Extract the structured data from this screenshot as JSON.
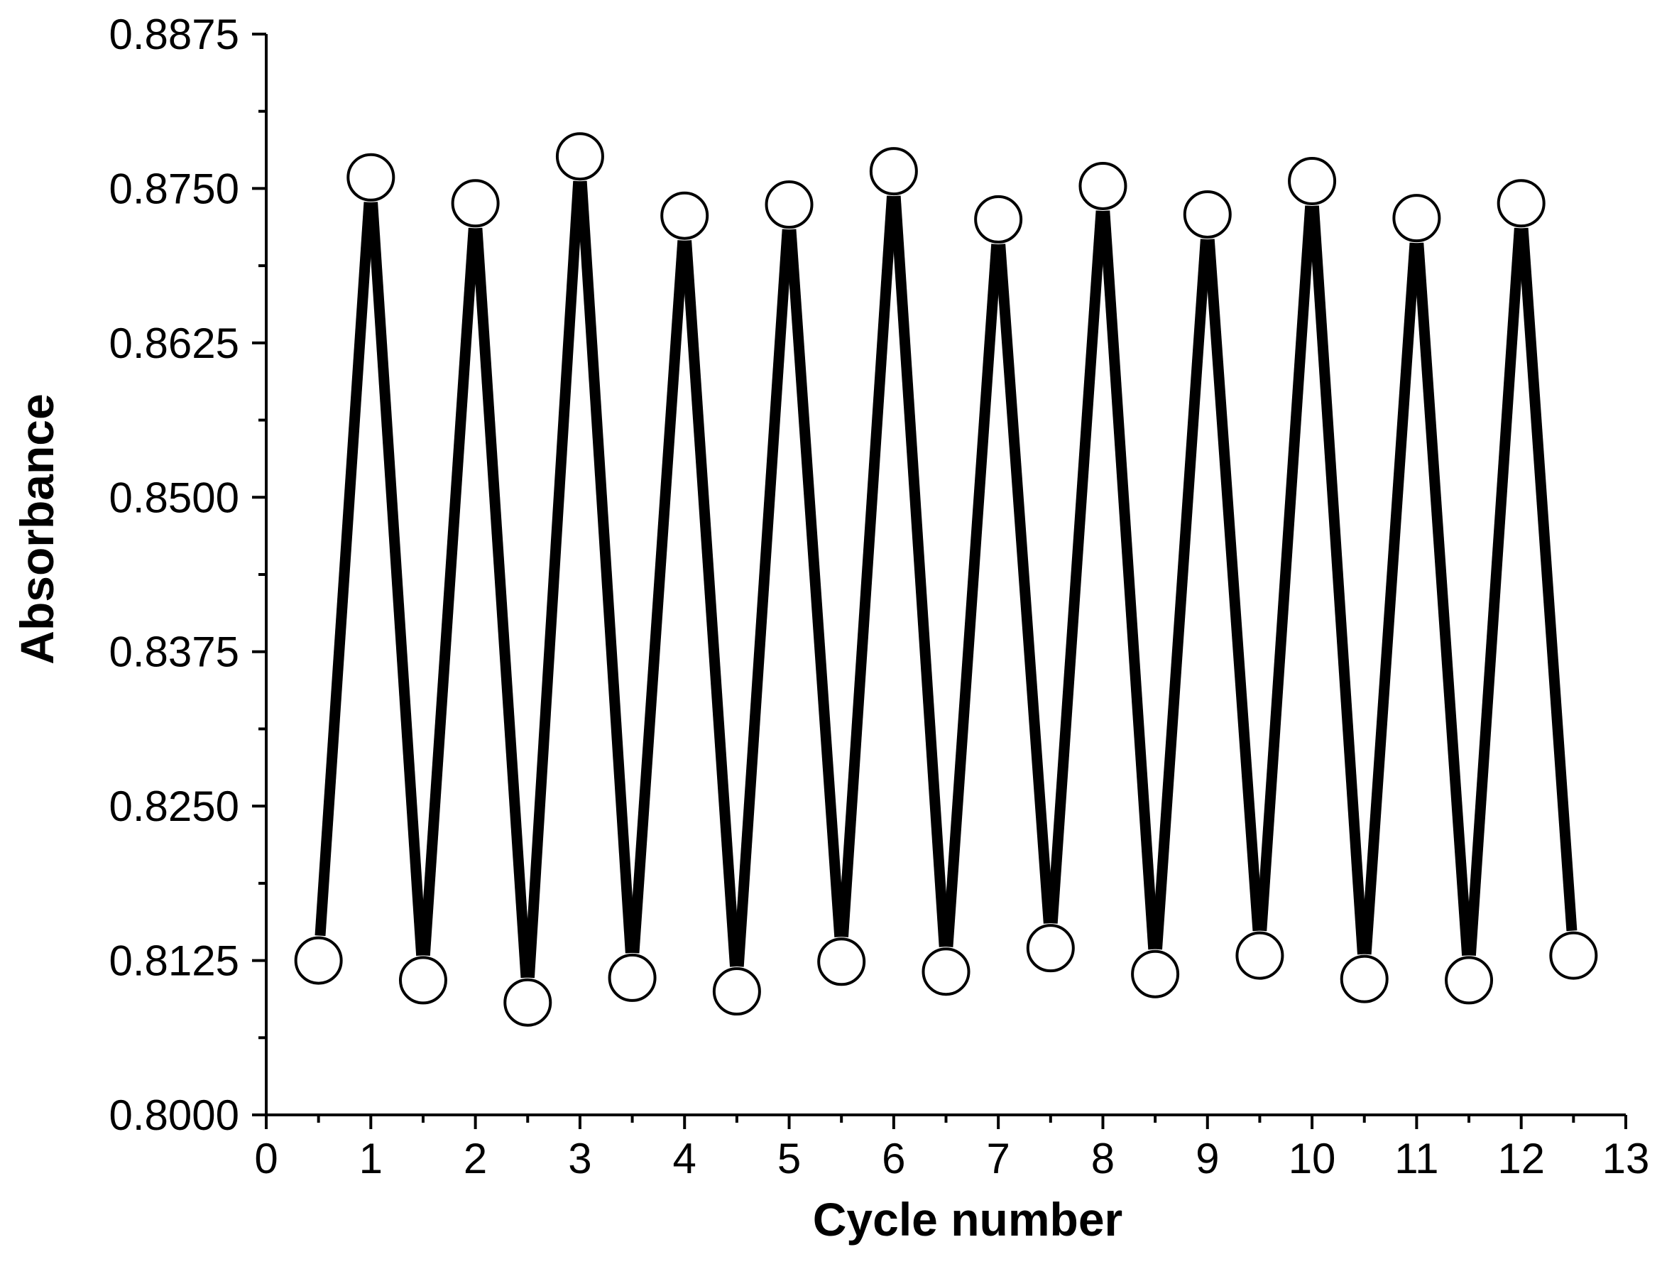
{
  "chart_data": {
    "type": "line",
    "title": "",
    "xlabel": "Cycle number",
    "ylabel": "Absorbance",
    "xlim": [
      0,
      13
    ],
    "ylim": [
      0.8,
      0.8875
    ],
    "x_ticks": [
      0,
      1,
      2,
      3,
      4,
      5,
      6,
      7,
      8,
      9,
      10,
      11,
      12,
      13
    ],
    "x_tick_labels": [
      "0",
      "1",
      "2",
      "3",
      "4",
      "5",
      "6",
      "7",
      "8",
      "9",
      "10",
      "11",
      "12",
      "13"
    ],
    "x_minor_step": 0.5,
    "y_ticks": [
      0.8,
      0.8125,
      0.825,
      0.8375,
      0.85,
      0.8625,
      0.875,
      0.8875
    ],
    "y_tick_labels": [
      "0.8000",
      "0.8125",
      "0.8250",
      "0.8375",
      "0.8500",
      "0.8625",
      "0.8750",
      "0.8875"
    ],
    "y_minor_step": 0.00625,
    "grid": false,
    "legend": "none",
    "series": [
      {
        "name": "Absorbance",
        "line_color": "#000000",
        "marker": "open-circle",
        "x": [
          0.5,
          1,
          1.5,
          2,
          2.5,
          3,
          3.5,
          4,
          4.5,
          5,
          5.5,
          6,
          6.5,
          7,
          7.5,
          8,
          8.5,
          9,
          9.5,
          10,
          10.5,
          11,
          11.5,
          12,
          12.5
        ],
        "y": [
          0.8125,
          0.8759,
          0.8109,
          0.8738,
          0.8091,
          0.8776,
          0.8111,
          0.8728,
          0.81,
          0.8737,
          0.8124,
          0.8764,
          0.8116,
          0.8725,
          0.8135,
          0.8752,
          0.8114,
          0.8729,
          0.8129,
          0.8756,
          0.811,
          0.8726,
          0.8109,
          0.8738,
          0.8129
        ]
      }
    ]
  }
}
